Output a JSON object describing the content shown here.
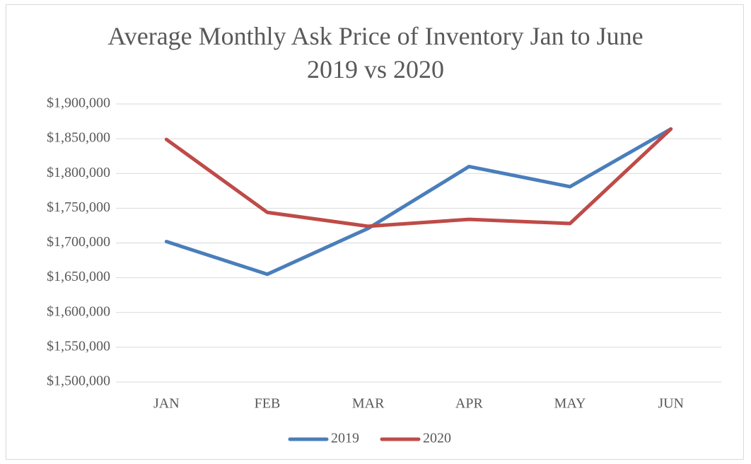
{
  "chart_data": {
    "type": "line",
    "title": "Average Monthly Ask Price of Inventory Jan to June\n2019 vs 2020",
    "categories": [
      "JAN",
      "FEB",
      "MAR",
      "APR",
      "MAY",
      "JUN"
    ],
    "series": [
      {
        "name": "2019",
        "color": "#4a7ebb",
        "values": [
          1702000,
          1655000,
          1721000,
          1810000,
          1781000,
          1864000
        ]
      },
      {
        "name": "2020",
        "color": "#be4b48",
        "values": [
          1849000,
          1744000,
          1724000,
          1734000,
          1728000,
          1864000
        ]
      }
    ],
    "ylim": [
      1500000,
      1900000
    ],
    "yticks": [
      {
        "value": 1500000,
        "label": "$1,500,000"
      },
      {
        "value": 1550000,
        "label": "$1,550,000"
      },
      {
        "value": 1600000,
        "label": "$1,600,000"
      },
      {
        "value": 1650000,
        "label": "$1,650,000"
      },
      {
        "value": 1700000,
        "label": "$1,700,000"
      },
      {
        "value": 1750000,
        "label": "$1,750,000"
      },
      {
        "value": 1800000,
        "label": "$1,800,000"
      },
      {
        "value": 1850000,
        "label": "$1,850,000"
      },
      {
        "value": 1900000,
        "label": "$1,900,000"
      }
    ],
    "grid": true,
    "legend": "bottom"
  }
}
